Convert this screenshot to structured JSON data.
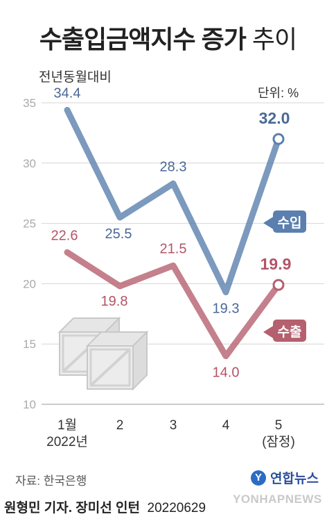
{
  "title": {
    "bold": "수출입금액지수 증가",
    "light": "추이"
  },
  "subtitle": "전년동월대비",
  "unit": "단위: %",
  "chart_data": {
    "type": "line",
    "categories": [
      [
        "1월",
        "2022년"
      ],
      [
        "2"
      ],
      [
        "3"
      ],
      [
        "4"
      ],
      [
        "5",
        "(잠정)"
      ]
    ],
    "y_ticks": [
      10,
      15,
      20,
      25,
      30,
      35
    ],
    "ylim": [
      10,
      35
    ],
    "grid": true,
    "series": [
      {
        "name": "수입",
        "values": [
          34.4,
          25.5,
          28.3,
          19.3,
          32.0
        ],
        "labels": [
          "34.4",
          "25.5",
          "28.3",
          "19.3",
          "32.0"
        ],
        "color": "#5b7fae",
        "label_color": "#4a6896"
      },
      {
        "name": "수출",
        "values": [
          22.6,
          19.8,
          21.5,
          14.0,
          19.9
        ],
        "labels": [
          "22.6",
          "19.8",
          "21.5",
          "14.0",
          "19.9"
        ],
        "color": "#b5606f",
        "label_color": "#b35466"
      }
    ]
  },
  "source": "자료: 한국은행",
  "logo": {
    "text": "연합뉴스",
    "mark": "Y"
  },
  "watermark": "YONHAPNEWS",
  "credit": {
    "reporter": "원형민 기자",
    "intern": "장미선 인턴",
    "date": "20220629"
  }
}
